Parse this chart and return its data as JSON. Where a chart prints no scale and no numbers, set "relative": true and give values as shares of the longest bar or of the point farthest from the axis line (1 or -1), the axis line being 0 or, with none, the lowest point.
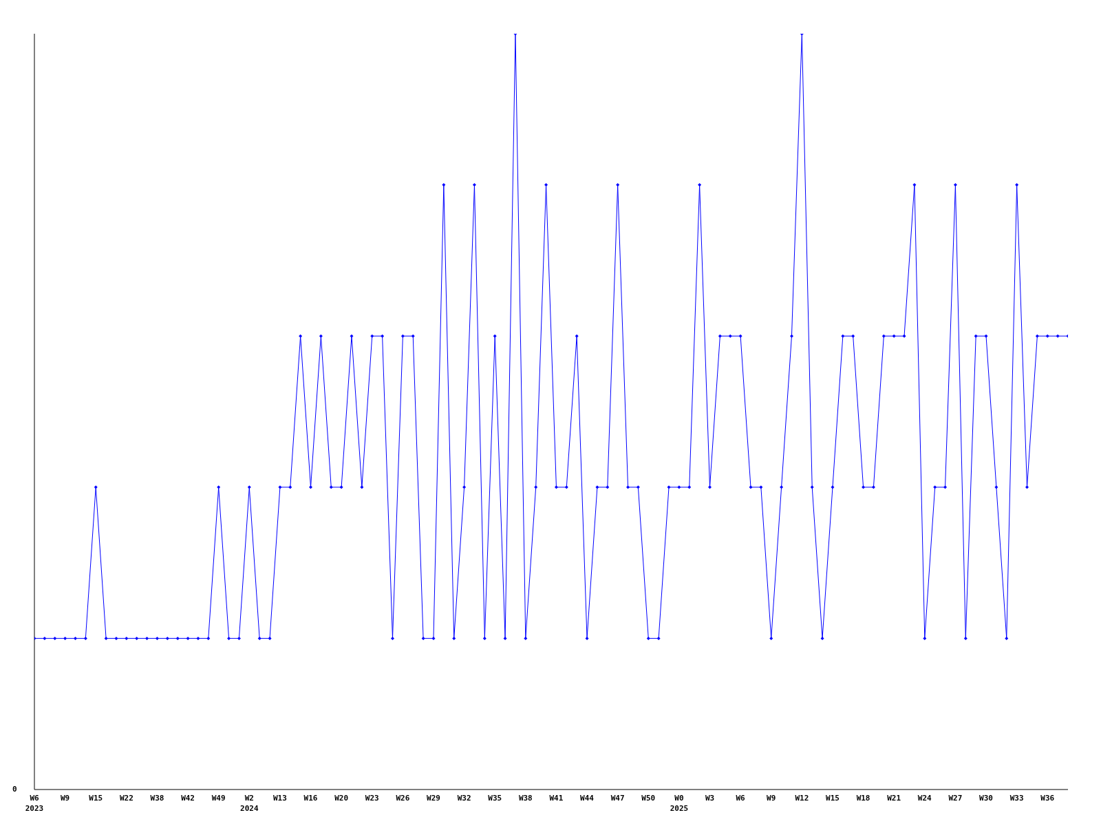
{
  "chart_data": {
    "type": "line",
    "relative": true,
    "marker": "diamond",
    "grid": false,
    "legend": false,
    "annotations": [
      "0"
    ],
    "categories": [
      "W6\n2023",
      null,
      null,
      "W9",
      null,
      null,
      "W15",
      null,
      null,
      "W22",
      null,
      null,
      "W38",
      null,
      null,
      "W42",
      null,
      null,
      "W49",
      null,
      null,
      "W2\n2024",
      null,
      null,
      "W13",
      null,
      null,
      "W16",
      null,
      null,
      "W20",
      null,
      null,
      "W23",
      null,
      null,
      "W26",
      null,
      null,
      "W29",
      null,
      null,
      "W32",
      null,
      null,
      "W35",
      null,
      null,
      "W38",
      null,
      null,
      "W41",
      null,
      null,
      "W44",
      null,
      null,
      "W47",
      null,
      null,
      "W50",
      null,
      null,
      "W0\n2025",
      null,
      null,
      "W3",
      null,
      null,
      "W6",
      null,
      null,
      "W9",
      null,
      null,
      "W12",
      null,
      null,
      "W15",
      null,
      null,
      "W18",
      null,
      null,
      "W21",
      null,
      null,
      "W24",
      null,
      null,
      "W27",
      null,
      null,
      "W30",
      null,
      null,
      "W33",
      null,
      null,
      "W36",
      null,
      null
    ],
    "series": [
      {
        "color": "#0000ff",
        "values": [
          0.2,
          0.2,
          0.2,
          0.2,
          0.2,
          0.2,
          0.4,
          0.2,
          0.2,
          0.2,
          0.2,
          0.2,
          0.2,
          0.2,
          0.2,
          0.2,
          0.2,
          0.2,
          0.4,
          0.2,
          0.2,
          0.4,
          0.2,
          0.2,
          0.4,
          0.4,
          0.6,
          0.4,
          0.6,
          0.4,
          0.4,
          0.6,
          0.4,
          0.6,
          0.6,
          0.2,
          0.6,
          0.6,
          0.2,
          0.2,
          0.8,
          0.2,
          0.4,
          0.8,
          0.2,
          0.6,
          0.2,
          1,
          0.2,
          0.4,
          0.8,
          0.4,
          0.4,
          0.6,
          0.2,
          0.4,
          0.4,
          0.8,
          0.4,
          0.4,
          0.2,
          0.2,
          0.4,
          0.4,
          0.4,
          0.8,
          0.4,
          0.6,
          0.6,
          0.6,
          0.4,
          0.4,
          0.2,
          0.4,
          0.6,
          1,
          0.4,
          0.2,
          0.4,
          0.6,
          0.6,
          0.4,
          0.4,
          0.6,
          0.6,
          0.6,
          0.8,
          0.2,
          0.4,
          0.4,
          0.8,
          0.2,
          0.6,
          0.6,
          0.4,
          0.2,
          0.8,
          0.4,
          0.6,
          0.6,
          0.6,
          0.6
        ]
      }
    ]
  }
}
